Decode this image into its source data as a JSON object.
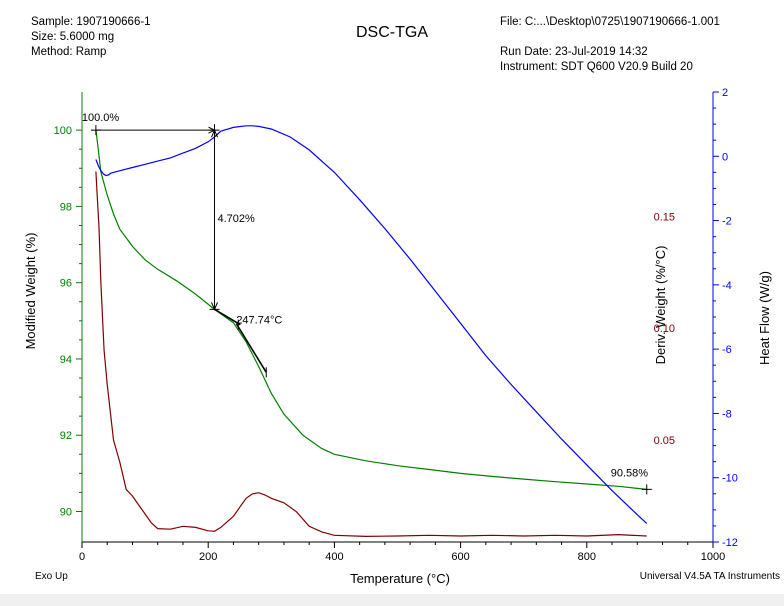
{
  "header": {
    "sample": "Sample: 1907190666-1",
    "size": "Size:  5.6000 mg",
    "method": "Method: Ramp",
    "title": "DSC-TGA",
    "file": "File: C:...\\Desktop\\0725\\1907190666-1.001",
    "run_date": "Run Date: 23-Jul-2019 14:32",
    "instrument": "Instrument: SDT Q600 V20.9 Build 20"
  },
  "footer": {
    "exo": "Exo Up",
    "software": "Universal V4.5A TA Instruments"
  },
  "colors": {
    "weight": "#008000",
    "deriv": "#800000",
    "heat": "#0000ff",
    "axis": "#000000"
  },
  "chart_data": {
    "type": "line",
    "title": "DSC-TGA",
    "xlabel": "Temperature (°C)",
    "xlim": [
      0,
      1000
    ],
    "xticks": [
      0,
      200,
      400,
      600,
      800,
      1000
    ],
    "axes": {
      "left": {
        "label": "Modified Weight (%)",
        "lim": [
          89.2,
          101.0
        ],
        "ticks": [
          90,
          92,
          94,
          96,
          98,
          100
        ],
        "color": "#008000"
      },
      "right1": {
        "label": "Deriv. Weight (%/°C)",
        "lim": [
          0.0045,
          0.2055
        ],
        "ticks": [
          "0.05",
          "0.10",
          "0.15"
        ],
        "tick_values": [
          0.05,
          0.1,
          0.15
        ],
        "color": "#800000"
      },
      "right2": {
        "label": "Heat Flow (W/g)",
        "lim": [
          -12,
          2
        ],
        "ticks": [
          -12,
          -10,
          -8,
          -6,
          -4,
          -2,
          0,
          2
        ],
        "color": "#0000ff"
      }
    },
    "series": [
      {
        "axis": "left",
        "x": [
          22,
          25,
          30,
          40,
          50,
          60,
          80,
          100,
          120,
          150,
          180,
          210,
          240,
          260,
          280,
          300,
          320,
          350,
          380,
          400,
          450,
          500,
          550,
          600,
          650,
          700,
          750,
          800,
          850,
          895
        ],
        "y": [
          100.0,
          99.6,
          98.9,
          98.3,
          97.8,
          97.4,
          96.95,
          96.6,
          96.35,
          96.05,
          95.7,
          95.3,
          94.95,
          94.45,
          93.8,
          93.1,
          92.55,
          92.0,
          91.65,
          91.5,
          91.33,
          91.2,
          91.1,
          91.0,
          90.92,
          90.85,
          90.78,
          90.72,
          90.66,
          90.58
        ]
      },
      {
        "axis": "right1",
        "x": [
          22,
          24,
          27,
          30,
          35,
          40,
          50,
          60,
          70,
          80,
          90,
          100,
          110,
          120,
          140,
          160,
          180,
          200,
          210,
          220,
          240,
          260,
          270,
          280,
          290,
          300,
          320,
          340,
          360,
          380,
          400,
          450,
          500,
          550,
          600,
          650,
          700,
          750,
          800,
          850,
          895
        ],
        "y": [
          0.17,
          0.16,
          0.145,
          0.12,
          0.09,
          0.075,
          0.05,
          0.04,
          0.028,
          0.025,
          0.021,
          0.017,
          0.013,
          0.0105,
          0.0102,
          0.0115,
          0.011,
          0.0095,
          0.0093,
          0.011,
          0.016,
          0.024,
          0.026,
          0.0265,
          0.0255,
          0.024,
          0.022,
          0.018,
          0.0115,
          0.009,
          0.0075,
          0.007,
          0.0072,
          0.0075,
          0.0072,
          0.0075,
          0.0072,
          0.0075,
          0.0072,
          0.0078,
          0.0072
        ]
      },
      {
        "axis": "right2",
        "x": [
          22,
          26,
          30,
          34,
          38,
          42,
          46,
          50,
          60,
          80,
          100,
          120,
          140,
          160,
          180,
          200,
          210,
          220,
          240,
          260,
          270,
          280,
          300,
          330,
          360,
          400,
          440,
          480,
          520,
          560,
          600,
          640,
          680,
          720,
          760,
          800,
          840,
          880,
          895
        ],
        "y": [
          -0.1,
          -0.3,
          -0.45,
          -0.55,
          -0.6,
          -0.58,
          -0.52,
          -0.5,
          -0.45,
          -0.35,
          -0.25,
          -0.15,
          -0.05,
          0.1,
          0.25,
          0.45,
          0.6,
          0.78,
          0.9,
          0.95,
          0.95,
          0.93,
          0.85,
          0.6,
          0.2,
          -0.5,
          -1.35,
          -2.25,
          -3.2,
          -4.2,
          -5.2,
          -6.2,
          -7.1,
          -7.95,
          -8.8,
          -9.6,
          -10.4,
          -11.15,
          -11.42
        ]
      }
    ],
    "annotations": [
      {
        "text": "100.0%",
        "x": 22,
        "y": 100.0
      },
      {
        "text": "4.702%",
        "x": 208,
        "y": 97.7
      },
      {
        "text": "247.74°C",
        "x": 247.74,
        "y": 94.9
      },
      {
        "text": "90.58%",
        "x": 895,
        "y": 90.58
      }
    ]
  }
}
